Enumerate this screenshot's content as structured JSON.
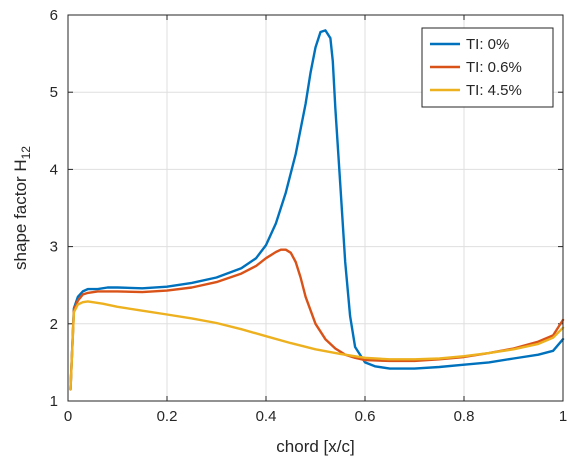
{
  "chart_data": {
    "type": "line",
    "title": "",
    "xlabel": "chord [x/c]",
    "ylabel": "shape factor H",
    "ylabel_subscript": "12",
    "xlim": [
      0,
      1
    ],
    "ylim": [
      1,
      6
    ],
    "xticks": [
      0,
      0.2,
      0.4,
      0.6,
      0.8,
      1
    ],
    "xtick_labels": [
      "0",
      "0.2",
      "0.4",
      "0.6",
      "0.8",
      "1"
    ],
    "yticks": [
      1,
      2,
      3,
      4,
      5,
      6
    ],
    "ytick_labels": [
      "1",
      "2",
      "3",
      "4",
      "5",
      "6"
    ],
    "grid": true,
    "legend_position": "top-right",
    "series": [
      {
        "name": "TI: 0%",
        "color": "#0072BD",
        "x": [
          0.005,
          0.012,
          0.02,
          0.03,
          0.04,
          0.05,
          0.06,
          0.08,
          0.1,
          0.15,
          0.2,
          0.25,
          0.3,
          0.35,
          0.38,
          0.4,
          0.42,
          0.44,
          0.46,
          0.48,
          0.49,
          0.5,
          0.51,
          0.52,
          0.53,
          0.535,
          0.54,
          0.55,
          0.56,
          0.57,
          0.58,
          0.6,
          0.62,
          0.65,
          0.7,
          0.75,
          0.8,
          0.85,
          0.9,
          0.95,
          0.98,
          1.0
        ],
        "y": [
          1.15,
          2.2,
          2.35,
          2.42,
          2.45,
          2.45,
          2.45,
          2.47,
          2.47,
          2.46,
          2.48,
          2.53,
          2.6,
          2.72,
          2.85,
          3.02,
          3.3,
          3.7,
          4.2,
          4.85,
          5.25,
          5.58,
          5.78,
          5.8,
          5.7,
          5.4,
          4.8,
          3.8,
          2.8,
          2.1,
          1.7,
          1.5,
          1.45,
          1.42,
          1.42,
          1.44,
          1.47,
          1.5,
          1.55,
          1.6,
          1.65,
          1.8
        ]
      },
      {
        "name": "TI: 0.6%",
        "color": "#D95319",
        "x": [
          0.005,
          0.012,
          0.02,
          0.03,
          0.04,
          0.06,
          0.1,
          0.15,
          0.2,
          0.25,
          0.3,
          0.35,
          0.38,
          0.4,
          0.42,
          0.43,
          0.44,
          0.45,
          0.46,
          0.47,
          0.48,
          0.5,
          0.52,
          0.54,
          0.56,
          0.58,
          0.6,
          0.65,
          0.7,
          0.75,
          0.8,
          0.85,
          0.9,
          0.95,
          0.98,
          1.0
        ],
        "y": [
          1.15,
          2.18,
          2.3,
          2.38,
          2.4,
          2.42,
          2.42,
          2.41,
          2.43,
          2.47,
          2.54,
          2.65,
          2.75,
          2.85,
          2.93,
          2.96,
          2.96,
          2.92,
          2.8,
          2.6,
          2.35,
          2.0,
          1.8,
          1.68,
          1.6,
          1.56,
          1.53,
          1.52,
          1.52,
          1.54,
          1.57,
          1.62,
          1.68,
          1.77,
          1.85,
          2.05
        ]
      },
      {
        "name": "TI: 4.5%",
        "color": "#EDB120",
        "x": [
          0.005,
          0.012,
          0.02,
          0.03,
          0.04,
          0.05,
          0.07,
          0.1,
          0.15,
          0.2,
          0.25,
          0.3,
          0.35,
          0.4,
          0.45,
          0.5,
          0.55,
          0.6,
          0.65,
          0.7,
          0.75,
          0.8,
          0.85,
          0.9,
          0.95,
          0.98,
          1.0
        ],
        "y": [
          1.15,
          2.15,
          2.25,
          2.28,
          2.29,
          2.28,
          2.26,
          2.22,
          2.17,
          2.12,
          2.07,
          2.01,
          1.93,
          1.84,
          1.75,
          1.67,
          1.61,
          1.56,
          1.54,
          1.54,
          1.55,
          1.58,
          1.62,
          1.67,
          1.74,
          1.82,
          1.95
        ]
      }
    ]
  }
}
